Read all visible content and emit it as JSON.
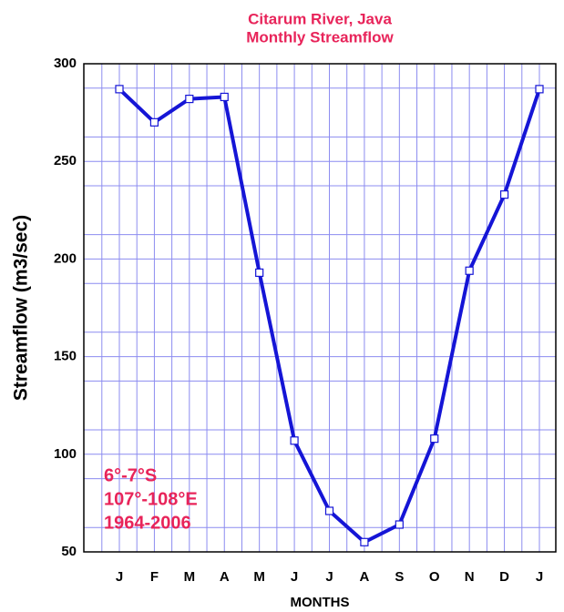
{
  "chart_data": {
    "type": "line",
    "title": "Citarum River, Java",
    "subtitle": "Monthly Streamflow",
    "x_label": "MONTHS",
    "y_label": "Streamflow (m3/sec)",
    "annotations": [
      "6°-7°S",
      "107°-108°E",
      "1964-2006"
    ],
    "categories": [
      "J",
      "F",
      "M",
      "A",
      "M",
      "J",
      "J",
      "A",
      "S",
      "O",
      "N",
      "D",
      "J"
    ],
    "series": [
      {
        "name": "Streamflow",
        "color": "#1515d6",
        "values": [
          287,
          270,
          282,
          283,
          193,
          107,
          71,
          55,
          64,
          108,
          194,
          233,
          287
        ]
      }
    ],
    "ylim": [
      50,
      300
    ],
    "yticks": [
      50,
      100,
      150,
      200,
      250,
      300
    ],
    "grid": true
  }
}
